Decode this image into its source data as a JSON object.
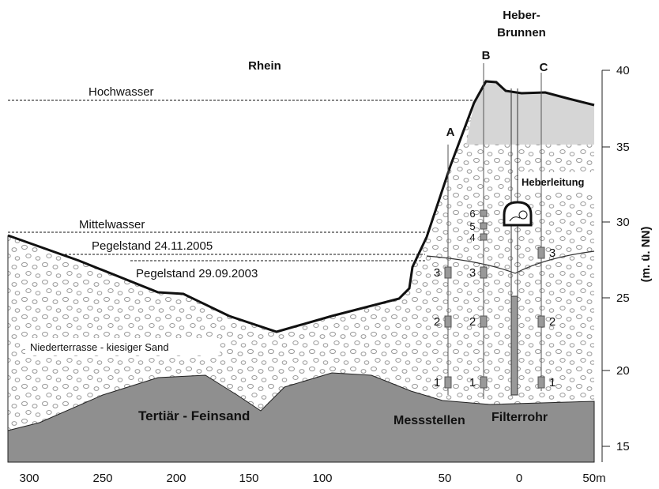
{
  "labels": {
    "rhein": "Rhein",
    "heber_brunnen": [
      "Heber-",
      "Brunnen"
    ],
    "hochwasser": "Hochwasser",
    "mittelwasser": "Mittelwasser",
    "pegel_2005": "Pegelstand 24.11.2005",
    "pegel_2003": "Pegelstand 29.09.2003",
    "niederterrasse": "Niederterrasse - kiesiger Sand",
    "tertiaer": "Tertiär - Feinsand",
    "messstellen": "Messstellen",
    "filterrohr": "Filterrohr",
    "heberleitung": "Heberleitung"
  },
  "wells": [
    {
      "name": "A",
      "screens": [
        "3",
        "2",
        "1"
      ]
    },
    {
      "name": "B",
      "screens": [
        "6",
        "5",
        "4",
        "3",
        "2",
        "1"
      ]
    },
    {
      "name": "C",
      "screens": [
        "3",
        "2",
        "1"
      ]
    }
  ],
  "x_axis": {
    "ticks": [
      300,
      250,
      200,
      150,
      100,
      50,
      0,
      {
        "value": 50,
        "label": "50m"
      }
    ]
  },
  "y_axis": {
    "title": "(m. ü. NN)",
    "ticks": [
      15,
      20,
      25,
      30,
      35,
      40
    ]
  }
}
